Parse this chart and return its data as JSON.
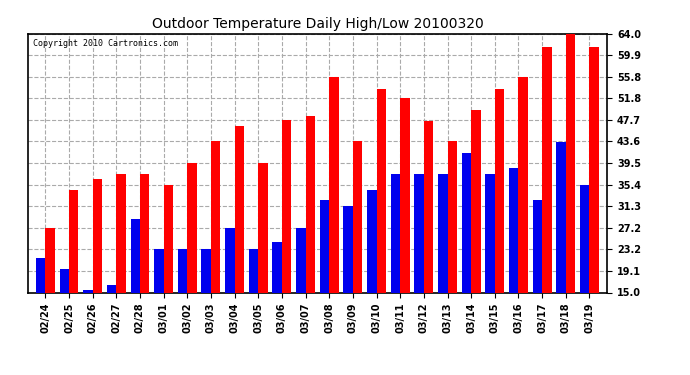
{
  "title": "Outdoor Temperature Daily High/Low 20100320",
  "copyright": "Copyright 2010 Cartronics.com",
  "dates": [
    "02/24",
    "02/25",
    "02/26",
    "02/27",
    "02/28",
    "03/01",
    "03/02",
    "03/03",
    "03/04",
    "03/05",
    "03/06",
    "03/07",
    "03/08",
    "03/09",
    "03/10",
    "03/11",
    "03/12",
    "03/13",
    "03/14",
    "03/15",
    "03/16",
    "03/17",
    "03/18",
    "03/19"
  ],
  "highs": [
    27.2,
    34.5,
    36.5,
    37.5,
    37.5,
    35.4,
    39.5,
    43.6,
    46.5,
    39.5,
    47.7,
    48.5,
    55.8,
    43.6,
    53.5,
    51.8,
    47.5,
    43.6,
    49.5,
    53.5,
    55.8,
    61.5,
    64.0,
    61.5
  ],
  "lows": [
    21.5,
    19.5,
    15.5,
    16.5,
    29.0,
    23.2,
    23.2,
    23.2,
    27.2,
    23.2,
    24.5,
    27.2,
    32.5,
    31.3,
    34.5,
    37.5,
    37.5,
    37.5,
    41.5,
    37.5,
    38.5,
    32.5,
    43.5,
    35.4
  ],
  "high_color": "#FF0000",
  "low_color": "#0000EE",
  "bg_color": "#FFFFFF",
  "grid_color": "#AAAAAA",
  "yticks": [
    15.0,
    19.1,
    23.2,
    27.2,
    31.3,
    35.4,
    39.5,
    43.6,
    47.7,
    51.8,
    55.8,
    59.9,
    64.0
  ],
  "ymin": 15.0,
  "ymax": 64.0,
  "bar_width": 0.4
}
